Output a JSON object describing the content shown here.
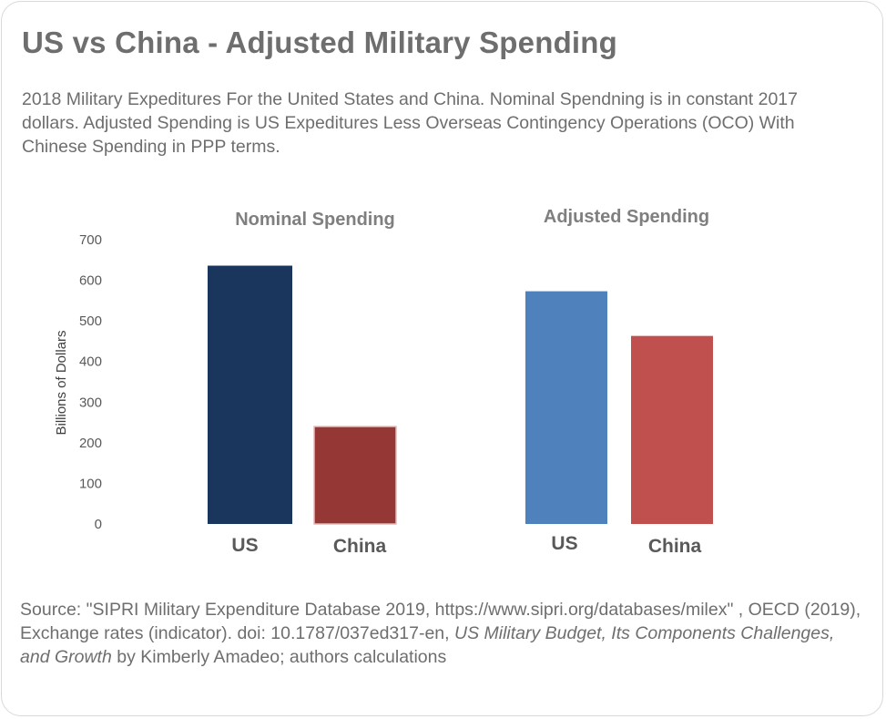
{
  "title": "US vs China - Adjusted Military Spending",
  "subtitle": "2018 Military Expeditures For the United States and China. Nominal Spendning is in constant 2017 dollars. Adjusted Spending is US Expeditures Less Overseas Contingency Operations (OCO) With Chinese Spending in PPP terms.",
  "source": {
    "part1": "Source: \"SIPRI Military Expenditure Database 2019, https://www.sipri.org/databases/milex\" , OECD (2019), Exchange rates (indicator). doi: 10.1787/037ed317-en, ",
    "italic": "US Military Budget, Its Components Challenges, and Growth",
    "part2": " by Kimberly Amadeo; authors calculations"
  },
  "chart_data": {
    "type": "bar",
    "ylabel": "Billions of Dollars",
    "ylim": [
      0,
      700
    ],
    "yticks": [
      0,
      100,
      200,
      300,
      400,
      500,
      600,
      700
    ],
    "groups": [
      {
        "name": "Nominal Spending",
        "categories": [
          "US",
          "China"
        ],
        "values": [
          636,
          240
        ],
        "colors": [
          "#1b365d",
          "#953735"
        ]
      },
      {
        "name": "Adjusted Spending",
        "categories": [
          "US",
          "China"
        ],
        "values": [
          573,
          463
        ],
        "colors": [
          "#4f81bd",
          "#c0504d"
        ]
      }
    ]
  }
}
